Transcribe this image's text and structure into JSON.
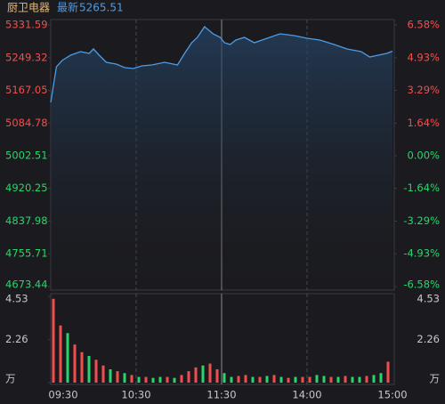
{
  "chart_data": {
    "type": "line",
    "title": "厨卫电器",
    "latest_label": "最新",
    "latest": 5265.51,
    "up_color": "#f24e4e",
    "down_color": "#2bd46a",
    "line_color": "#4d9be6",
    "grid": "x",
    "xlim": [
      0,
      240
    ],
    "xticks": [
      {
        "value": 0,
        "label": "09:30"
      },
      {
        "value": 60,
        "label": "10:30"
      },
      {
        "value": 120,
        "label": "11:30"
      },
      {
        "value": 180,
        "label": "14:00"
      },
      {
        "value": 240,
        "label": "15:00"
      }
    ],
    "ylim": [
      4673.44,
      5331.59
    ],
    "yticks": [
      5331.59,
      5249.32,
      5167.05,
      5084.78,
      5002.51,
      4920.25,
      4837.98,
      4755.71,
      4673.44
    ],
    "y2lim": [
      -6.58,
      6.58
    ],
    "y2ticks": [
      {
        "value": 6.58,
        "label": "6.58%"
      },
      {
        "value": 4.93,
        "label": "4.93%"
      },
      {
        "value": 3.29,
        "label": "3.29%"
      },
      {
        "value": 1.64,
        "label": "1.64%"
      },
      {
        "value": 0,
        "label": "0.00%"
      },
      {
        "value": -1.64,
        "label": "-1.64%"
      },
      {
        "value": -3.29,
        "label": "-3.29%"
      },
      {
        "value": -4.93,
        "label": "-4.93%"
      },
      {
        "value": -6.58,
        "label": "-6.58%"
      }
    ],
    "x": [
      0,
      4,
      8,
      14,
      21,
      27,
      30,
      34,
      39,
      46,
      52,
      58,
      64,
      71,
      80,
      89,
      94,
      99,
      103,
      108,
      114,
      119,
      122,
      126,
      130,
      136,
      143,
      152,
      161,
      171,
      180,
      189,
      199,
      208,
      218,
      224,
      230,
      236,
      240
    ],
    "values": [
      5136.8,
      5226.4,
      5242.0,
      5255.5,
      5264.4,
      5260.0,
      5271.2,
      5255.5,
      5237.6,
      5233.1,
      5224.1,
      5221.9,
      5228.6,
      5230.9,
      5237.6,
      5230.9,
      5260.0,
      5286.8,
      5300.3,
      5327.1,
      5309.2,
      5300.3,
      5286.8,
      5282.3,
      5293.5,
      5300.3,
      5286.8,
      5298.0,
      5309.2,
      5304.7,
      5298.0,
      5293.5,
      5282.3,
      5271.2,
      5264.4,
      5251.0,
      5255.5,
      5260.0,
      5265.51
    ],
    "volume": {
      "ylim": [
        0,
        4.53
      ],
      "yticks": [
        4.53,
        2.26,
        {
          "value": 0,
          "label": "万"
        }
      ],
      "x": [
        0,
        5,
        10,
        15,
        20,
        25,
        30,
        35,
        40,
        45,
        50,
        55,
        60,
        65,
        70,
        75,
        80,
        85,
        90,
        95,
        100,
        105,
        110,
        115,
        120,
        125,
        130,
        135,
        140,
        145,
        150,
        155,
        160,
        165,
        170,
        175,
        180,
        185,
        190,
        195,
        200,
        205,
        210,
        215,
        220,
        225,
        230,
        235
      ],
      "values": [
        4.4,
        3.0,
        2.6,
        2.0,
        1.6,
        1.4,
        1.2,
        0.9,
        0.7,
        0.6,
        0.5,
        0.4,
        0.3,
        0.3,
        0.25,
        0.3,
        0.3,
        0.25,
        0.4,
        0.6,
        0.8,
        0.9,
        1.0,
        0.7,
        0.5,
        0.3,
        0.35,
        0.4,
        0.3,
        0.3,
        0.35,
        0.4,
        0.3,
        0.25,
        0.3,
        0.3,
        0.3,
        0.4,
        0.35,
        0.3,
        0.3,
        0.35,
        0.3,
        0.3,
        0.35,
        0.4,
        0.5,
        1.1
      ],
      "up": [
        true,
        true,
        false,
        true,
        true,
        false,
        true,
        true,
        false,
        true,
        false,
        true,
        false,
        true,
        false,
        false,
        true,
        false,
        true,
        true,
        true,
        false,
        true,
        true,
        false,
        false,
        true,
        true,
        false,
        true,
        false,
        true,
        false,
        true,
        false,
        true,
        true,
        false,
        false,
        true,
        false,
        true,
        false,
        false,
        true,
        false,
        false,
        true
      ]
    }
  }
}
